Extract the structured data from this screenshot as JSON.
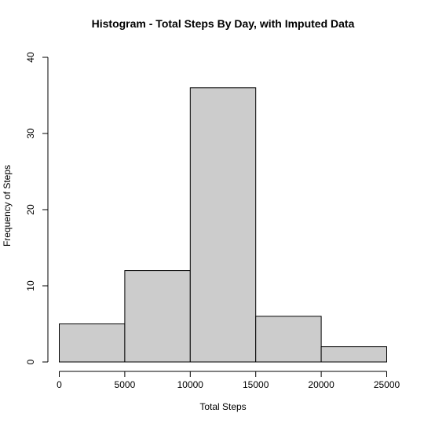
{
  "chart_data": {
    "type": "bar",
    "title": "Histogram - Total Steps By Day, with Imputed Data",
    "xlabel": "Total Steps",
    "ylabel": "Frequency of Steps",
    "bins": [
      {
        "start": 0,
        "end": 5000,
        "count": 5
      },
      {
        "start": 5000,
        "end": 10000,
        "count": 12
      },
      {
        "start": 10000,
        "end": 15000,
        "count": 36
      },
      {
        "start": 15000,
        "end": 20000,
        "count": 6
      },
      {
        "start": 20000,
        "end": 25000,
        "count": 2
      }
    ],
    "xlim": [
      0,
      25000
    ],
    "ylim": [
      0,
      40
    ],
    "xticks": [
      0,
      5000,
      10000,
      15000,
      20000,
      25000
    ],
    "yticks": [
      0,
      10,
      20,
      30,
      40
    ],
    "grid": false,
    "bar_color": "#cccccc",
    "edge_color": "#000000"
  }
}
